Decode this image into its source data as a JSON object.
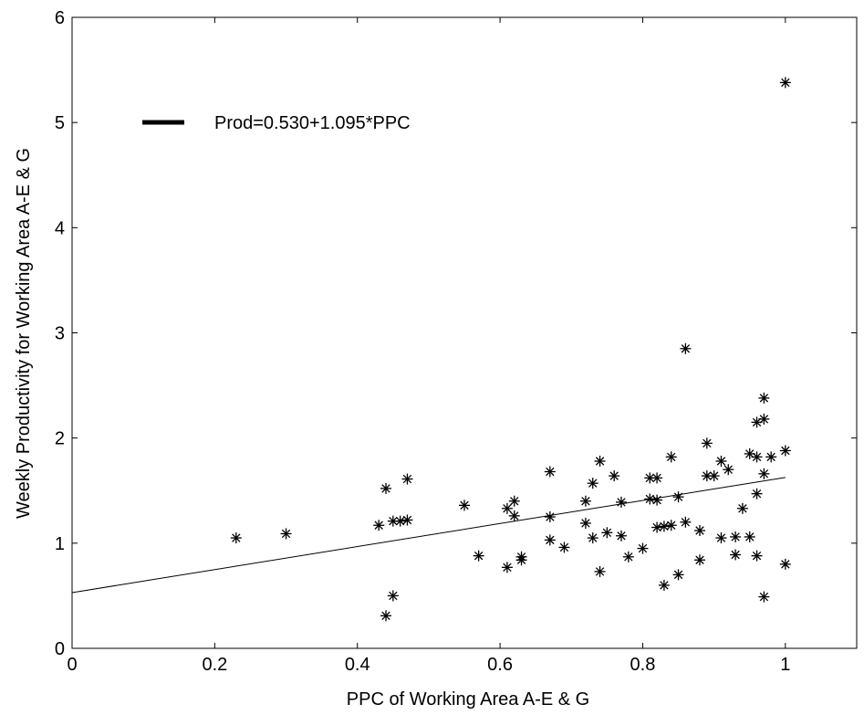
{
  "chart_data": {
    "type": "scatter",
    "title": "",
    "xlabel": "PPC of Working Area A-E & G",
    "ylabel": "Weekly Productivity for Working Area A-E & G",
    "xlim": [
      0,
      1.1
    ],
    "ylim": [
      0,
      6
    ],
    "xticks": [
      0,
      0.2,
      0.4,
      0.6,
      0.8,
      1
    ],
    "xtick_labels": [
      "0",
      "0.2",
      "0.4",
      "0.6",
      "0.8",
      "1"
    ],
    "yticks": [
      0,
      1,
      2,
      3,
      4,
      5,
      6
    ],
    "ytick_labels": [
      "0",
      "1",
      "2",
      "3",
      "4",
      "5",
      "6"
    ],
    "grid": false,
    "legend": {
      "placement": "top-left",
      "entries": [
        "Prod=0.530+1.095*PPC"
      ]
    },
    "fit_line": {
      "intercept": 0.53,
      "slope": 1.095,
      "x_range": [
        0,
        1
      ]
    },
    "marker": "*",
    "points": [
      [
        0.23,
        1.05
      ],
      [
        0.3,
        1.09
      ],
      [
        0.43,
        1.17
      ],
      [
        0.44,
        1.52
      ],
      [
        0.45,
        1.21
      ],
      [
        0.46,
        1.21
      ],
      [
        0.47,
        1.22
      ],
      [
        0.47,
        1.61
      ],
      [
        0.44,
        0.31
      ],
      [
        0.45,
        0.5
      ],
      [
        0.55,
        1.36
      ],
      [
        0.57,
        0.88
      ],
      [
        0.61,
        0.77
      ],
      [
        0.61,
        1.33
      ],
      [
        0.62,
        1.4
      ],
      [
        0.62,
        1.26
      ],
      [
        0.63,
        0.87
      ],
      [
        0.63,
        0.84
      ],
      [
        0.67,
        1.68
      ],
      [
        0.67,
        1.25
      ],
      [
        0.67,
        1.03
      ],
      [
        0.69,
        0.96
      ],
      [
        0.72,
        1.4
      ],
      [
        0.72,
        1.19
      ],
      [
        0.73,
        1.57
      ],
      [
        0.73,
        1.05
      ],
      [
        0.74,
        1.78
      ],
      [
        0.74,
        0.73
      ],
      [
        0.75,
        1.1
      ],
      [
        0.76,
        1.64
      ],
      [
        0.77,
        1.39
      ],
      [
        0.77,
        1.07
      ],
      [
        0.78,
        0.87
      ],
      [
        0.8,
        0.95
      ],
      [
        0.81,
        1.62
      ],
      [
        0.81,
        1.42
      ],
      [
        0.82,
        1.62
      ],
      [
        0.82,
        1.41
      ],
      [
        0.82,
        1.15
      ],
      [
        0.83,
        1.16
      ],
      [
        0.83,
        0.6
      ],
      [
        0.84,
        1.82
      ],
      [
        0.84,
        1.17
      ],
      [
        0.85,
        1.44
      ],
      [
        0.85,
        0.7
      ],
      [
        0.86,
        2.85
      ],
      [
        0.86,
        1.2
      ],
      [
        0.88,
        1.12
      ],
      [
        0.88,
        0.84
      ],
      [
        0.89,
        1.95
      ],
      [
        0.89,
        1.64
      ],
      [
        0.9,
        1.64
      ],
      [
        0.91,
        1.78
      ],
      [
        0.91,
        1.05
      ],
      [
        0.92,
        1.7
      ],
      [
        0.93,
        1.06
      ],
      [
        0.93,
        0.89
      ],
      [
        0.94,
        1.33
      ],
      [
        0.95,
        1.85
      ],
      [
        0.95,
        1.06
      ],
      [
        0.96,
        2.15
      ],
      [
        0.96,
        1.82
      ],
      [
        0.96,
        1.47
      ],
      [
        0.96,
        0.88
      ],
      [
        0.97,
        2.38
      ],
      [
        0.97,
        2.18
      ],
      [
        0.97,
        1.66
      ],
      [
        0.97,
        0.49
      ],
      [
        0.98,
        1.82
      ],
      [
        1.0,
        5.38
      ],
      [
        1.0,
        1.88
      ],
      [
        1.0,
        0.8
      ]
    ]
  }
}
